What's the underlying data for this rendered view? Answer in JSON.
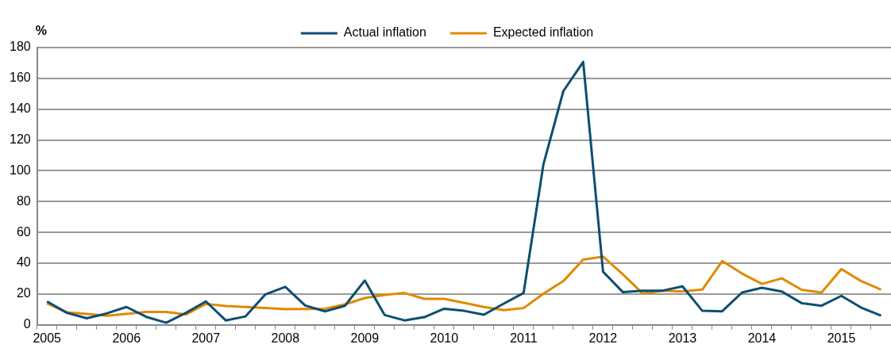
{
  "chart_data": {
    "type": "line",
    "ylabel": "%",
    "categories": [
      "2005",
      null,
      null,
      null,
      "2006",
      null,
      null,
      null,
      "2007",
      null,
      null,
      null,
      "2008",
      null,
      null,
      null,
      "2009",
      null,
      null,
      null,
      "2010",
      null,
      null,
      null,
      "2011",
      null,
      null,
      null,
      "2012",
      null,
      null,
      null,
      "2013",
      null,
      null,
      null,
      "2014",
      null,
      null,
      null,
      "2015",
      null,
      null
    ],
    "series": [
      {
        "name": "Actual inflation",
        "color": "#0d4e72",
        "values": [
          15.2,
          7.8,
          4.3,
          7.4,
          11.6,
          5.2,
          1.4,
          7.8,
          15.2,
          2.9,
          5.5,
          19.8,
          24.7,
          12.6,
          8.8,
          12.4,
          28.8,
          6.4,
          2.9,
          5,
          10.5,
          9.1,
          6.6,
          13.8,
          20.7,
          104.3,
          151.7,
          170.7,
          34.5,
          21.2,
          22.2,
          22.2,
          25,
          9.1,
          8.8,
          21,
          24.1,
          21.6,
          14.1,
          12.4,
          18.8,
          11.2,
          6
        ]
      },
      {
        "name": "Expected inflation",
        "color": "#e08a00",
        "values": [
          14,
          8.1,
          7.1,
          6,
          7.1,
          8.4,
          8.4,
          6.7,
          13.6,
          12.2,
          11.6,
          10.9,
          10.2,
          10.3,
          10.5,
          13.3,
          17.4,
          19.5,
          20.7,
          16.9,
          16.9,
          14.3,
          11.6,
          9.5,
          10.9,
          20.2,
          28.4,
          42.3,
          44.3,
          32.8,
          20.3,
          22.2,
          21.7,
          22.9,
          41.4,
          33.3,
          26.6,
          30.2,
          22.8,
          21,
          36.2,
          28.4,
          22.9
        ]
      }
    ],
    "ylim": [
      0,
      180
    ],
    "yticks": [
      0,
      20,
      40,
      60,
      80,
      100,
      120,
      140,
      160,
      180
    ],
    "grid": "y",
    "legend": "top",
    "marker": "none",
    "line_style": "solid"
  }
}
